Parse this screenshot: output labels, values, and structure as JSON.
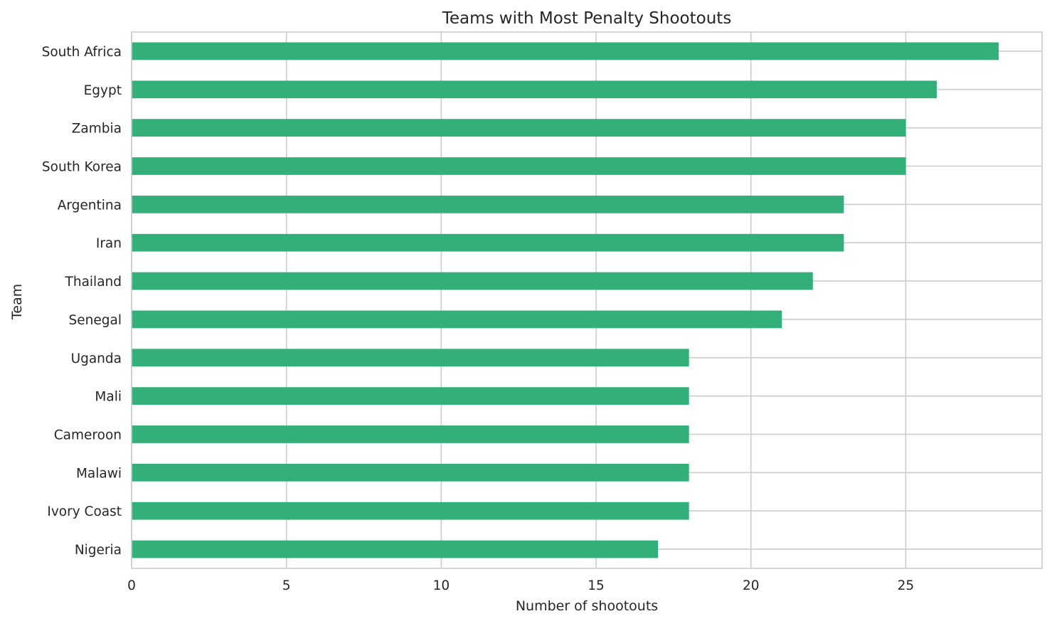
{
  "chart_data": {
    "type": "bar",
    "orientation": "horizontal",
    "title": "Teams with Most Penalty Shootouts",
    "xlabel": "Number of shootouts",
    "ylabel": "Team",
    "categories": [
      "South Africa",
      "Egypt",
      "Zambia",
      "South Korea",
      "Argentina",
      "Iran",
      "Thailand",
      "Senegal",
      "Uganda",
      "Mali",
      "Cameroon",
      "Malawi",
      "Ivory Coast",
      "Nigeria"
    ],
    "values": [
      28,
      26,
      25,
      25,
      23,
      23,
      22,
      21,
      18,
      18,
      18,
      18,
      18,
      17
    ],
    "xlim": [
      0,
      29.4
    ],
    "xticks": [
      0,
      5,
      10,
      15,
      20,
      25
    ],
    "grid": true,
    "bar_color": "#33b07a"
  }
}
